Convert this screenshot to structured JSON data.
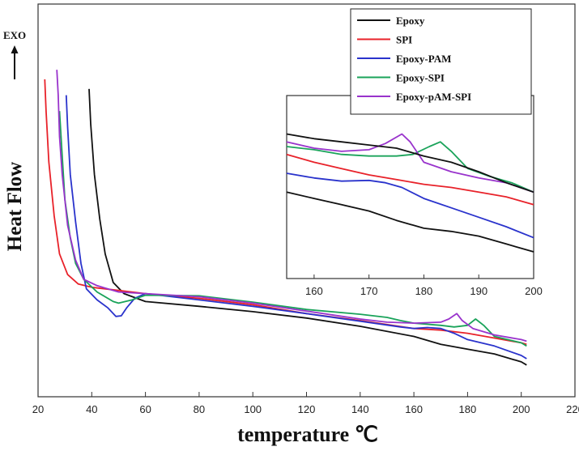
{
  "chart_data": {
    "type": "line",
    "title": "",
    "xlabel": "temperature ℃",
    "ylabel": "Heat Flow",
    "exo_label": "EXO",
    "xlim": [
      20,
      220
    ],
    "x_ticks": [
      20,
      40,
      60,
      80,
      100,
      120,
      140,
      160,
      180,
      200,
      220
    ],
    "ylim": [
      0,
      1
    ],
    "y_ticks_shown": false,
    "legend_position": "top-right",
    "series": [
      {
        "name": "Epoxy",
        "color": "#111111",
        "points": [
          [
            39,
            0.97
          ],
          [
            39.6,
            0.86
          ],
          [
            41,
            0.7
          ],
          [
            43,
            0.56
          ],
          [
            45,
            0.45
          ],
          [
            48,
            0.36
          ],
          [
            52,
            0.325
          ],
          [
            60,
            0.3
          ],
          [
            80,
            0.285
          ],
          [
            100,
            0.268
          ],
          [
            120,
            0.248
          ],
          [
            140,
            0.222
          ],
          [
            160,
            0.19
          ],
          [
            170,
            0.165
          ],
          [
            180,
            0.15
          ],
          [
            190,
            0.135
          ],
          [
            200,
            0.11
          ],
          [
            202,
            0.1
          ]
        ]
      },
      {
        "name": "SPI",
        "color": "#e8222a",
        "points": [
          [
            22.5,
            1.0
          ],
          [
            23,
            0.9
          ],
          [
            24,
            0.74
          ],
          [
            26,
            0.57
          ],
          [
            28,
            0.45
          ],
          [
            31,
            0.385
          ],
          [
            35,
            0.355
          ],
          [
            40,
            0.345
          ],
          [
            50,
            0.335
          ],
          [
            60,
            0.325
          ],
          [
            80,
            0.31
          ],
          [
            100,
            0.29
          ],
          [
            120,
            0.262
          ],
          [
            140,
            0.24
          ],
          [
            160,
            0.215
          ],
          [
            170,
            0.21
          ],
          [
            180,
            0.2
          ],
          [
            190,
            0.185
          ],
          [
            200,
            0.17
          ],
          [
            202,
            0.165
          ]
        ]
      },
      {
        "name": "Epoxy-PAM",
        "color": "#2a33cc",
        "points": [
          [
            30.5,
            0.95
          ],
          [
            31,
            0.85
          ],
          [
            32,
            0.7
          ],
          [
            34,
            0.55
          ],
          [
            36,
            0.42
          ],
          [
            38,
            0.34
          ],
          [
            42,
            0.305
          ],
          [
            46,
            0.28
          ],
          [
            49,
            0.253
          ],
          [
            51,
            0.255
          ],
          [
            53,
            0.28
          ],
          [
            56,
            0.31
          ],
          [
            60,
            0.325
          ],
          [
            80,
            0.305
          ],
          [
            100,
            0.285
          ],
          [
            120,
            0.262
          ],
          [
            140,
            0.238
          ],
          [
            155,
            0.22
          ],
          [
            160,
            0.215
          ],
          [
            165,
            0.218
          ],
          [
            170,
            0.215
          ],
          [
            175,
            0.2
          ],
          [
            180,
            0.18
          ],
          [
            190,
            0.16
          ],
          [
            200,
            0.13
          ],
          [
            202,
            0.12
          ]
        ]
      },
      {
        "name": "Epoxy-SPI",
        "color": "#1aa35a",
        "points": [
          [
            28,
            0.9
          ],
          [
            29,
            0.76
          ],
          [
            30,
            0.62
          ],
          [
            32,
            0.5
          ],
          [
            34,
            0.42
          ],
          [
            37,
            0.37
          ],
          [
            42,
            0.33
          ],
          [
            48,
            0.3
          ],
          [
            50,
            0.295
          ],
          [
            55,
            0.305
          ],
          [
            60,
            0.32
          ],
          [
            80,
            0.318
          ],
          [
            100,
            0.298
          ],
          [
            120,
            0.275
          ],
          [
            140,
            0.26
          ],
          [
            150,
            0.25
          ],
          [
            155,
            0.24
          ],
          [
            160,
            0.232
          ],
          [
            170,
            0.225
          ],
          [
            175,
            0.22
          ],
          [
            180,
            0.225
          ],
          [
            183,
            0.245
          ],
          [
            186,
            0.225
          ],
          [
            190,
            0.19
          ],
          [
            200,
            0.17
          ],
          [
            202,
            0.16
          ]
        ]
      },
      {
        "name": "Epoxy-pAM-SPI",
        "color": "#9933cc",
        "points": [
          [
            27,
            1.03
          ],
          [
            27.5,
            0.95
          ],
          [
            28,
            0.82
          ],
          [
            29,
            0.7
          ],
          [
            31,
            0.54
          ],
          [
            34,
            0.43
          ],
          [
            37,
            0.37
          ],
          [
            42,
            0.35
          ],
          [
            50,
            0.33
          ],
          [
            60,
            0.325
          ],
          [
            80,
            0.315
          ],
          [
            100,
            0.295
          ],
          [
            120,
            0.27
          ],
          [
            140,
            0.245
          ],
          [
            150,
            0.235
          ],
          [
            160,
            0.232
          ],
          [
            170,
            0.235
          ],
          [
            173,
            0.245
          ],
          [
            176,
            0.262
          ],
          [
            178,
            0.24
          ],
          [
            182,
            0.215
          ],
          [
            190,
            0.195
          ],
          [
            200,
            0.18
          ],
          [
            202,
            0.175
          ]
        ]
      }
    ],
    "inset": {
      "xlim": [
        155,
        200
      ],
      "x_ticks": [
        160,
        170,
        180,
        190,
        200
      ],
      "ylim": [
        0,
        1
      ],
      "series": [
        {
          "name": "Epoxy",
          "color": "#111111",
          "points": [
            [
              155,
              0.55
            ],
            [
              160,
              0.51
            ],
            [
              165,
              0.47
            ],
            [
              170,
              0.43
            ],
            [
              175,
              0.37
            ],
            [
              180,
              0.32
            ],
            [
              185,
              0.3
            ],
            [
              190,
              0.27
            ],
            [
              195,
              0.22
            ],
            [
              200,
              0.17
            ]
          ]
        },
        {
          "name": "SPI",
          "color": "#e8222a",
          "points": [
            [
              155,
              0.79
            ],
            [
              160,
              0.74
            ],
            [
              165,
              0.7
            ],
            [
              170,
              0.66
            ],
            [
              175,
              0.63
            ],
            [
              180,
              0.6
            ],
            [
              185,
              0.58
            ],
            [
              190,
              0.55
            ],
            [
              195,
              0.52
            ],
            [
              200,
              0.47
            ]
          ]
        },
        {
          "name": "Epoxy-PAM",
          "color": "#2a33cc",
          "points": [
            [
              155,
              0.67
            ],
            [
              160,
              0.64
            ],
            [
              165,
              0.62
            ],
            [
              170,
              0.625
            ],
            [
              173,
              0.61
            ],
            [
              176,
              0.58
            ],
            [
              180,
              0.51
            ],
            [
              185,
              0.45
            ],
            [
              190,
              0.39
            ],
            [
              195,
              0.33
            ],
            [
              200,
              0.26
            ]
          ]
        },
        {
          "name": "Epoxy-SPI",
          "color": "#1aa35a",
          "points": [
            [
              155,
              0.84
            ],
            [
              160,
              0.82
            ],
            [
              165,
              0.79
            ],
            [
              170,
              0.78
            ],
            [
              175,
              0.78
            ],
            [
              178,
              0.79
            ],
            [
              181,
              0.84
            ],
            [
              183,
              0.87
            ],
            [
              185,
              0.81
            ],
            [
              188,
              0.7
            ],
            [
              192,
              0.65
            ],
            [
              196,
              0.61
            ],
            [
              200,
              0.55
            ]
          ]
        },
        {
          "name": "Epoxy-pAM-SPI",
          "color": "#9933cc",
          "points": [
            [
              155,
              0.87
            ],
            [
              160,
              0.83
            ],
            [
              165,
              0.81
            ],
            [
              170,
              0.82
            ],
            [
              173,
              0.86
            ],
            [
              176,
              0.92
            ],
            [
              177.5,
              0.87
            ],
            [
              180,
              0.74
            ],
            [
              185,
              0.68
            ],
            [
              190,
              0.64
            ],
            [
              195,
              0.61
            ],
            [
              200,
              0.55
            ]
          ]
        },
        {
          "name": "Epoxy (upper trace)",
          "color": "#111111",
          "points": [
            [
              155,
              0.92
            ],
            [
              160,
              0.89
            ],
            [
              165,
              0.87
            ],
            [
              170,
              0.85
            ],
            [
              175,
              0.83
            ],
            [
              180,
              0.78
            ],
            [
              185,
              0.74
            ],
            [
              190,
              0.68
            ],
            [
              195,
              0.61
            ],
            [
              200,
              0.55
            ]
          ]
        }
      ]
    }
  }
}
